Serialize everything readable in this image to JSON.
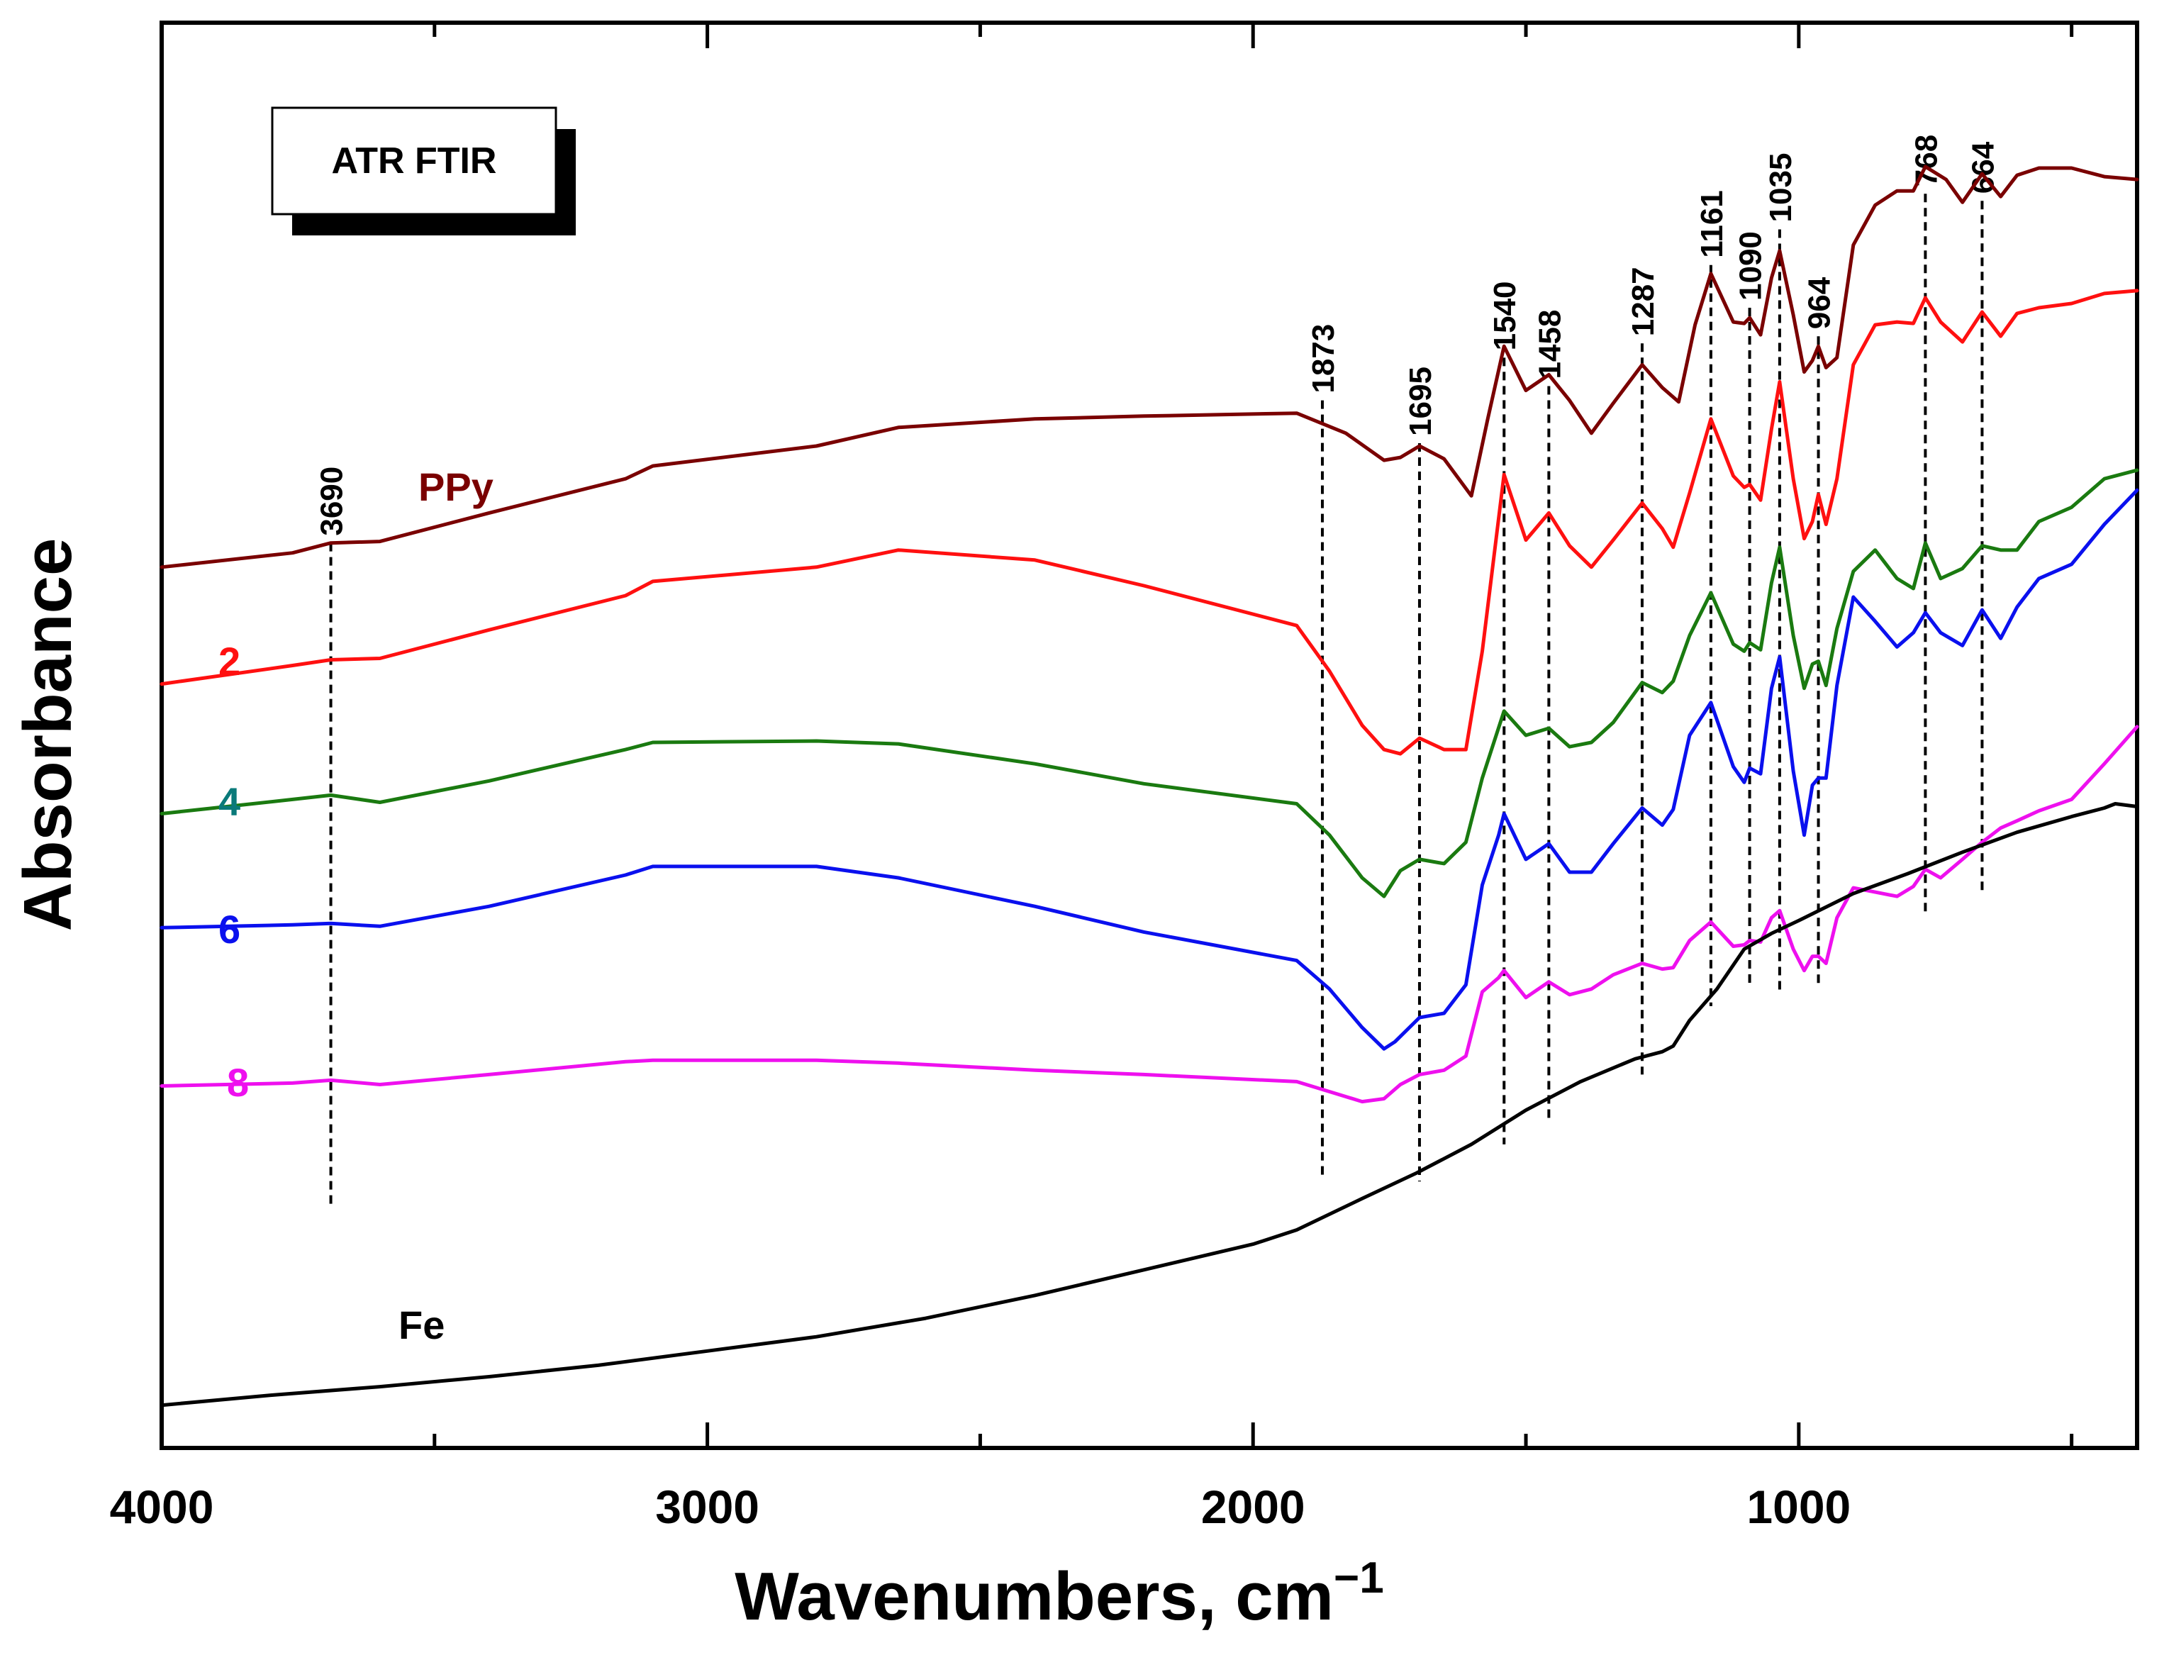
{
  "chart_data": {
    "type": "line",
    "title": "ATR FTIR",
    "xlabel": "Wavenumbers, cm",
    "xlabel_superscript": "−1",
    "ylabel": "Absorbance",
    "xlim": [
      4000,
      380
    ],
    "x_inverted": true,
    "y_ticks_visible": false,
    "xticks": [
      "4000",
      "3000",
      "2000",
      "1000"
    ],
    "xtick_values": [
      4000,
      3000,
      2000,
      1000
    ],
    "peak_labels": [
      {
        "wavenumber": 3690,
        "label": "3690",
        "y_top": 0.635,
        "y_bottom": 0.17
      },
      {
        "wavenumber": 1873,
        "label": "1873",
        "y_top": 0.735,
        "y_bottom": 0.19
      },
      {
        "wavenumber": 1695,
        "label": "1695",
        "y_top": 0.705,
        "y_bottom": 0.187
      },
      {
        "wavenumber": 1540,
        "label": "1540",
        "y_top": 0.765,
        "y_bottom": 0.213
      },
      {
        "wavenumber": 1458,
        "label": "1458",
        "y_top": 0.745,
        "y_bottom": 0.23
      },
      {
        "wavenumber": 1287,
        "label": "1287",
        "y_top": 0.775,
        "y_bottom": 0.262
      },
      {
        "wavenumber": 1161,
        "label": "1161",
        "y_top": 0.83,
        "y_bottom": 0.31
      },
      {
        "wavenumber": 1090,
        "label": "1090",
        "y_top": 0.8,
        "y_bottom": 0.323
      },
      {
        "wavenumber": 1035,
        "label": "1035",
        "y_top": 0.855,
        "y_bottom": 0.318
      },
      {
        "wavenumber": 964,
        "label": "964",
        "y_top": 0.78,
        "y_bottom": 0.325
      },
      {
        "wavenumber": 768,
        "label": "768",
        "y_top": 0.88,
        "y_bottom": 0.375
      },
      {
        "wavenumber": 664,
        "label": "664",
        "y_top": 0.875,
        "y_bottom": 0.39
      }
    ],
    "series": [
      {
        "name": "PPy",
        "label": "PPy",
        "color": "#7a0000",
        "x": [
          4000,
          3760,
          3690,
          3600,
          3400,
          3150,
          3100,
          2800,
          2650,
          2400,
          2200,
          1920,
          1830,
          1760,
          1730,
          1695,
          1650,
          1600,
          1570,
          1540,
          1500,
          1458,
          1420,
          1380,
          1340,
          1287,
          1250,
          1220,
          1190,
          1161,
          1120,
          1100,
          1090,
          1070,
          1050,
          1035,
          1010,
          990,
          975,
          964,
          950,
          930,
          900,
          860,
          820,
          790,
          768,
          730,
          700,
          664,
          630,
          600,
          560,
          500,
          440,
          380
        ],
        "y": [
          0.618,
          0.628,
          0.635,
          0.636,
          0.656,
          0.68,
          0.689,
          0.703,
          0.716,
          0.722,
          0.724,
          0.726,
          0.712,
          0.693,
          0.695,
          0.703,
          0.694,
          0.668,
          0.722,
          0.773,
          0.742,
          0.753,
          0.735,
          0.712,
          0.733,
          0.76,
          0.744,
          0.734,
          0.788,
          0.824,
          0.79,
          0.789,
          0.793,
          0.781,
          0.821,
          0.84,
          0.795,
          0.755,
          0.763,
          0.773,
          0.758,
          0.765,
          0.844,
          0.872,
          0.882,
          0.882,
          0.899,
          0.89,
          0.874,
          0.894,
          0.878,
          0.893,
          0.898,
          0.898,
          0.892,
          0.89
        ]
      },
      {
        "name": "2",
        "label": "2",
        "color": "#ff1010",
        "x": [
          4000,
          3760,
          3690,
          3600,
          3400,
          3150,
          3100,
          2800,
          2650,
          2400,
          2200,
          1920,
          1860,
          1800,
          1760,
          1730,
          1695,
          1650,
          1610,
          1580,
          1540,
          1500,
          1458,
          1420,
          1380,
          1340,
          1287,
          1250,
          1230,
          1200,
          1161,
          1120,
          1100,
          1090,
          1070,
          1050,
          1035,
          1010,
          990,
          975,
          964,
          950,
          930,
          900,
          860,
          820,
          790,
          768,
          740,
          700,
          664,
          630,
          600,
          560,
          500,
          440,
          380
        ],
        "y": [
          0.536,
          0.549,
          0.553,
          0.554,
          0.574,
          0.598,
          0.608,
          0.618,
          0.63,
          0.623,
          0.605,
          0.577,
          0.545,
          0.507,
          0.49,
          0.487,
          0.498,
          0.49,
          0.49,
          0.559,
          0.683,
          0.637,
          0.656,
          0.633,
          0.618,
          0.637,
          0.663,
          0.645,
          0.632,
          0.67,
          0.722,
          0.682,
          0.674,
          0.676,
          0.665,
          0.715,
          0.748,
          0.68,
          0.638,
          0.65,
          0.669,
          0.648,
          0.68,
          0.76,
          0.788,
          0.79,
          0.789,
          0.807,
          0.79,
          0.776,
          0.797,
          0.78,
          0.796,
          0.8,
          0.803,
          0.81,
          0.812
        ]
      },
      {
        "name": "4",
        "label": "4",
        "color": "#1a7a10",
        "x": [
          4000,
          3760,
          3690,
          3600,
          3400,
          3150,
          3100,
          2800,
          2650,
          2400,
          2200,
          1920,
          1860,
          1800,
          1760,
          1730,
          1695,
          1650,
          1610,
          1580,
          1540,
          1500,
          1458,
          1420,
          1380,
          1340,
          1287,
          1250,
          1230,
          1200,
          1161,
          1120,
          1100,
          1090,
          1070,
          1050,
          1035,
          1010,
          990,
          975,
          964,
          950,
          930,
          900,
          860,
          820,
          790,
          768,
          740,
          700,
          664,
          630,
          600,
          560,
          500,
          440,
          380
        ],
        "y": [
          0.445,
          0.455,
          0.458,
          0.453,
          0.468,
          0.49,
          0.495,
          0.496,
          0.494,
          0.48,
          0.466,
          0.452,
          0.43,
          0.4,
          0.387,
          0.405,
          0.413,
          0.41,
          0.425,
          0.47,
          0.517,
          0.5,
          0.505,
          0.492,
          0.495,
          0.509,
          0.537,
          0.53,
          0.538,
          0.57,
          0.6,
          0.564,
          0.559,
          0.565,
          0.56,
          0.607,
          0.632,
          0.57,
          0.533,
          0.55,
          0.552,
          0.535,
          0.575,
          0.615,
          0.63,
          0.61,
          0.603,
          0.635,
          0.61,
          0.617,
          0.633,
          0.63,
          0.63,
          0.65,
          0.66,
          0.68,
          0.686
        ]
      },
      {
        "name": "6",
        "label": "6",
        "color": "#0a10ee",
        "x": [
          4000,
          3760,
          3690,
          3600,
          3400,
          3150,
          3100,
          2800,
          2650,
          2400,
          2200,
          1920,
          1860,
          1800,
          1760,
          1740,
          1695,
          1650,
          1610,
          1580,
          1550,
          1540,
          1500,
          1458,
          1420,
          1380,
          1340,
          1287,
          1250,
          1230,
          1200,
          1161,
          1120,
          1100,
          1090,
          1070,
          1050,
          1035,
          1010,
          990,
          975,
          964,
          950,
          930,
          900,
          860,
          820,
          790,
          768,
          740,
          700,
          664,
          630,
          600,
          560,
          500,
          440,
          380
        ],
        "y": [
          0.365,
          0.367,
          0.368,
          0.366,
          0.38,
          0.402,
          0.408,
          0.408,
          0.4,
          0.38,
          0.362,
          0.342,
          0.322,
          0.295,
          0.28,
          0.285,
          0.302,
          0.305,
          0.325,
          0.395,
          0.43,
          0.445,
          0.413,
          0.424,
          0.404,
          0.404,
          0.424,
          0.449,
          0.437,
          0.448,
          0.5,
          0.523,
          0.478,
          0.467,
          0.477,
          0.473,
          0.533,
          0.555,
          0.475,
          0.43,
          0.465,
          0.47,
          0.47,
          0.535,
          0.597,
          0.58,
          0.562,
          0.572,
          0.586,
          0.572,
          0.563,
          0.588,
          0.568,
          0.59,
          0.61,
          0.62,
          0.648,
          0.672
        ]
      },
      {
        "name": "8",
        "label": "8",
        "color": "#ee10ee",
        "x": [
          4000,
          3760,
          3690,
          3600,
          3400,
          3150,
          3100,
          2800,
          2650,
          2400,
          2200,
          1920,
          1860,
          1800,
          1760,
          1730,
          1695,
          1650,
          1610,
          1580,
          1550,
          1540,
          1500,
          1458,
          1420,
          1380,
          1340,
          1287,
          1250,
          1230,
          1200,
          1161,
          1120,
          1100,
          1090,
          1070,
          1050,
          1035,
          1010,
          990,
          975,
          964,
          950,
          930,
          900,
          860,
          820,
          790,
          768,
          740,
          700,
          664,
          630,
          600,
          560,
          500,
          440,
          380
        ],
        "y": [
          0.254,
          0.256,
          0.258,
          0.255,
          0.262,
          0.271,
          0.272,
          0.272,
          0.27,
          0.265,
          0.262,
          0.257,
          0.25,
          0.243,
          0.245,
          0.255,
          0.262,
          0.265,
          0.275,
          0.32,
          0.33,
          0.335,
          0.316,
          0.327,
          0.318,
          0.322,
          0.332,
          0.34,
          0.336,
          0.337,
          0.356,
          0.369,
          0.352,
          0.353,
          0.356,
          0.355,
          0.372,
          0.377,
          0.35,
          0.335,
          0.345,
          0.345,
          0.34,
          0.372,
          0.393,
          0.39,
          0.387,
          0.394,
          0.406,
          0.4,
          0.413,
          0.425,
          0.435,
          0.44,
          0.447,
          0.455,
          0.48,
          0.506
        ]
      },
      {
        "name": "Fe",
        "label": "Fe",
        "color": "#000000",
        "x": [
          4000,
          3800,
          3600,
          3400,
          3200,
          3000,
          2800,
          2600,
          2400,
          2200,
          2000,
          1920,
          1800,
          1700,
          1600,
          1500,
          1400,
          1300,
          1250,
          1230,
          1200,
          1150,
          1100,
          1050,
          1000,
          900,
          800,
          700,
          600,
          500,
          440,
          420,
          380
        ],
        "y": [
          0.03,
          0.037,
          0.043,
          0.05,
          0.058,
          0.068,
          0.078,
          0.091,
          0.107,
          0.125,
          0.143,
          0.153,
          0.175,
          0.193,
          0.213,
          0.237,
          0.257,
          0.273,
          0.278,
          0.282,
          0.3,
          0.322,
          0.35,
          0.361,
          0.37,
          0.389,
          0.403,
          0.418,
          0.432,
          0.443,
          0.449,
          0.452,
          0.45
        ]
      }
    ]
  }
}
